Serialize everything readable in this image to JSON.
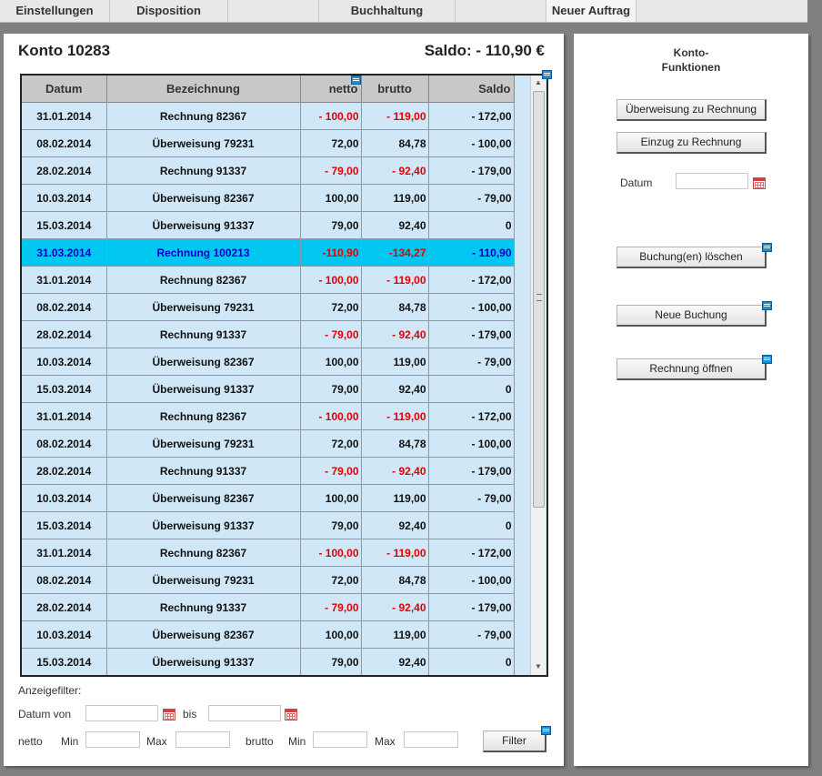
{
  "menu": {
    "items": [
      "Einstellungen",
      "Disposition",
      "",
      "Buchhaltung",
      "",
      "Neuer Auftrag"
    ]
  },
  "account": {
    "title": "Konto 10283",
    "saldo": "Saldo: - 110,90 €"
  },
  "table": {
    "columns": [
      "Datum",
      "Bezeichnung",
      "netto",
      "brutto",
      "Saldo"
    ],
    "rows": [
      {
        "datum": "31.01.2014",
        "bezeichnung": "Rechnung 82367",
        "netto": "- 100,00",
        "brutto": "- 119,00",
        "saldo": "- 172,00",
        "neg": true
      },
      {
        "datum": "08.02.2014",
        "bezeichnung": "Überweisung 79231",
        "netto": "72,00",
        "brutto": "84,78",
        "saldo": "- 100,00",
        "neg": false
      },
      {
        "datum": "28.02.2014",
        "bezeichnung": "Rechnung 91337",
        "netto": "- 79,00",
        "brutto": "- 92,40",
        "saldo": "- 179,00",
        "neg": true
      },
      {
        "datum": "10.03.2014",
        "bezeichnung": "Überweisung 82367",
        "netto": "100,00",
        "brutto": "119,00",
        "saldo": "- 79,00",
        "neg": false
      },
      {
        "datum": "15.03.2014",
        "bezeichnung": "Überweisung 91337",
        "netto": "79,00",
        "brutto": "92,40",
        "saldo": "0",
        "neg": false
      },
      {
        "datum": "31.03.2014",
        "bezeichnung": "Rechnung 100213",
        "netto": "-110,90",
        "brutto": "-134,27",
        "saldo": "- 110,90",
        "neg": true,
        "selected": true
      },
      {
        "datum": "31.01.2014",
        "bezeichnung": "Rechnung 82367",
        "netto": "- 100,00",
        "brutto": "- 119,00",
        "saldo": "- 172,00",
        "neg": true
      },
      {
        "datum": "08.02.2014",
        "bezeichnung": "Überweisung 79231",
        "netto": "72,00",
        "brutto": "84,78",
        "saldo": "- 100,00",
        "neg": false
      },
      {
        "datum": "28.02.2014",
        "bezeichnung": "Rechnung 91337",
        "netto": "- 79,00",
        "brutto": "- 92,40",
        "saldo": "- 179,00",
        "neg": true
      },
      {
        "datum": "10.03.2014",
        "bezeichnung": "Überweisung 82367",
        "netto": "100,00",
        "brutto": "119,00",
        "saldo": "- 79,00",
        "neg": false
      },
      {
        "datum": "15.03.2014",
        "bezeichnung": "Überweisung 91337",
        "netto": "79,00",
        "brutto": "92,40",
        "saldo": "0",
        "neg": false
      },
      {
        "datum": "31.01.2014",
        "bezeichnung": "Rechnung 82367",
        "netto": "- 100,00",
        "brutto": "- 119,00",
        "saldo": "- 172,00",
        "neg": true
      },
      {
        "datum": "08.02.2014",
        "bezeichnung": "Überweisung 79231",
        "netto": "72,00",
        "brutto": "84,78",
        "saldo": "- 100,00",
        "neg": false
      },
      {
        "datum": "28.02.2014",
        "bezeichnung": "Rechnung 91337",
        "netto": "- 79,00",
        "brutto": "- 92,40",
        "saldo": "- 179,00",
        "neg": true
      },
      {
        "datum": "10.03.2014",
        "bezeichnung": "Überweisung 82367",
        "netto": "100,00",
        "brutto": "119,00",
        "saldo": "- 79,00",
        "neg": false
      },
      {
        "datum": "15.03.2014",
        "bezeichnung": "Überweisung 91337",
        "netto": "79,00",
        "brutto": "92,40",
        "saldo": "0",
        "neg": false
      },
      {
        "datum": "31.01.2014",
        "bezeichnung": "Rechnung 82367",
        "netto": "- 100,00",
        "brutto": "- 119,00",
        "saldo": "- 172,00",
        "neg": true
      },
      {
        "datum": "08.02.2014",
        "bezeichnung": "Überweisung 79231",
        "netto": "72,00",
        "brutto": "84,78",
        "saldo": "- 100,00",
        "neg": false
      },
      {
        "datum": "28.02.2014",
        "bezeichnung": "Rechnung 91337",
        "netto": "- 79,00",
        "brutto": "- 92,40",
        "saldo": "- 179,00",
        "neg": true
      },
      {
        "datum": "10.03.2014",
        "bezeichnung": "Überweisung 82367",
        "netto": "100,00",
        "brutto": "119,00",
        "saldo": "- 79,00",
        "neg": false
      },
      {
        "datum": "15.03.2014",
        "bezeichnung": "Überweisung 91337",
        "netto": "79,00",
        "brutto": "92,40",
        "saldo": "0",
        "neg": false
      }
    ]
  },
  "filter": {
    "heading": "Anzeigefilter:",
    "datum_von": "Datum von",
    "bis": "bis",
    "netto": "netto",
    "min": "Min",
    "max": "Max",
    "brutto": "brutto",
    "button": "Filter"
  },
  "functions": {
    "heading_line1": "Konto-",
    "heading_line2": "Funktionen",
    "transfer_button": "Überweisung zu Rechnung",
    "debit_button": "Einzug zu Rechnung",
    "datum_label": "Datum",
    "delete_button": "Buchung(en) löschen",
    "new_button": "Neue Buchung",
    "open_invoice_button": "Rechnung öffnen"
  },
  "colors": {
    "selected_row": "#00c6f0",
    "row_bg": "#cfe7f7",
    "negative": "#e00000"
  }
}
